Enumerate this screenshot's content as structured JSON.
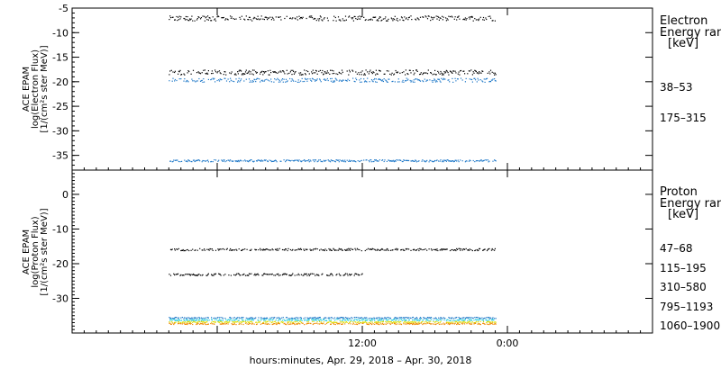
{
  "chart_data": [
    {
      "type": "scatter",
      "panel": "electron",
      "ylabel_lines": [
        "ACE EPAM",
        "log(Electron Flux)",
        "[1/(cm²s ster MeV)]"
      ],
      "ylim": [
        -38,
        -5
      ],
      "yticks": [
        -5,
        -10,
        -15,
        -20,
        -25,
        -30,
        -35
      ],
      "legend_title_lines": [
        "Electron",
        "Energy ranges"
      ],
      "legend_unit": "[keV]",
      "series": [
        {
          "name": "38–53",
          "color": "#000000",
          "bands": [
            {
              "t_range": [
                -28,
                -1
              ],
              "level": -7.0,
              "spread": 0.5
            },
            {
              "t_range": [
                -28,
                -1
              ],
              "level": -18.0,
              "spread": 0.5
            }
          ]
        },
        {
          "name": "175–315",
          "color": "#1e78c8",
          "bands": [
            {
              "t_range": [
                -28,
                -1
              ],
              "level": -19.6,
              "spread": 0.4
            },
            {
              "t_range": [
                -28,
                -1
              ],
              "level": -36.0,
              "spread": 0.2
            }
          ]
        }
      ]
    },
    {
      "type": "scatter",
      "panel": "proton",
      "ylabel_lines": [
        "ACE EPAM",
        "log(Proton Flux)",
        "[1/(cm²s ster MeV)]"
      ],
      "ylim": [
        -40,
        7
      ],
      "yticks": [
        0,
        -10,
        -20,
        -30
      ],
      "legend_title_lines": [
        "Proton",
        "Energy ranges"
      ],
      "legend_unit": "[keV]",
      "series": [
        {
          "name": "47–68",
          "color": "#000000",
          "bands": [
            {
              "t_range": [
                -28,
                -1
              ],
              "level": -15.8,
              "spread": 0.3
            },
            {
              "t_range": [
                -28,
                -12
              ],
              "level": -23.0,
              "spread": 0.3
            }
          ]
        },
        {
          "name": "115–195",
          "color": "#1e78c8",
          "bands": [
            {
              "t_range": [
                -28,
                -1
              ],
              "level": -35.5,
              "spread": 0.2
            }
          ]
        },
        {
          "name": "310–580",
          "color": "#22ccdd",
          "bands": [
            {
              "t_range": [
                -28,
                -1
              ],
              "level": -36.1,
              "spread": 0.2
            }
          ]
        },
        {
          "name": "795–1193",
          "color": "#dddd00",
          "bands": [
            {
              "t_range": [
                -28,
                -1
              ],
              "level": -36.7,
              "spread": 0.2
            }
          ]
        },
        {
          "name": "1060–1900",
          "color": "#ee8800",
          "bands": [
            {
              "t_range": [
                -28,
                -1
              ],
              "level": -37.2,
              "spread": 0.2
            }
          ]
        }
      ]
    }
  ],
  "x_axis": {
    "unit": "hours from Apr. 30, 2018 00:00",
    "xlim": [
      -36,
      12
    ],
    "ticks": [
      {
        "value": -12,
        "label": "12:00"
      },
      {
        "value": 0,
        "label": "0:00"
      }
    ],
    "xlabel": "hours:minutes, Apr. 29, 2018 – Apr. 30, 2018"
  }
}
